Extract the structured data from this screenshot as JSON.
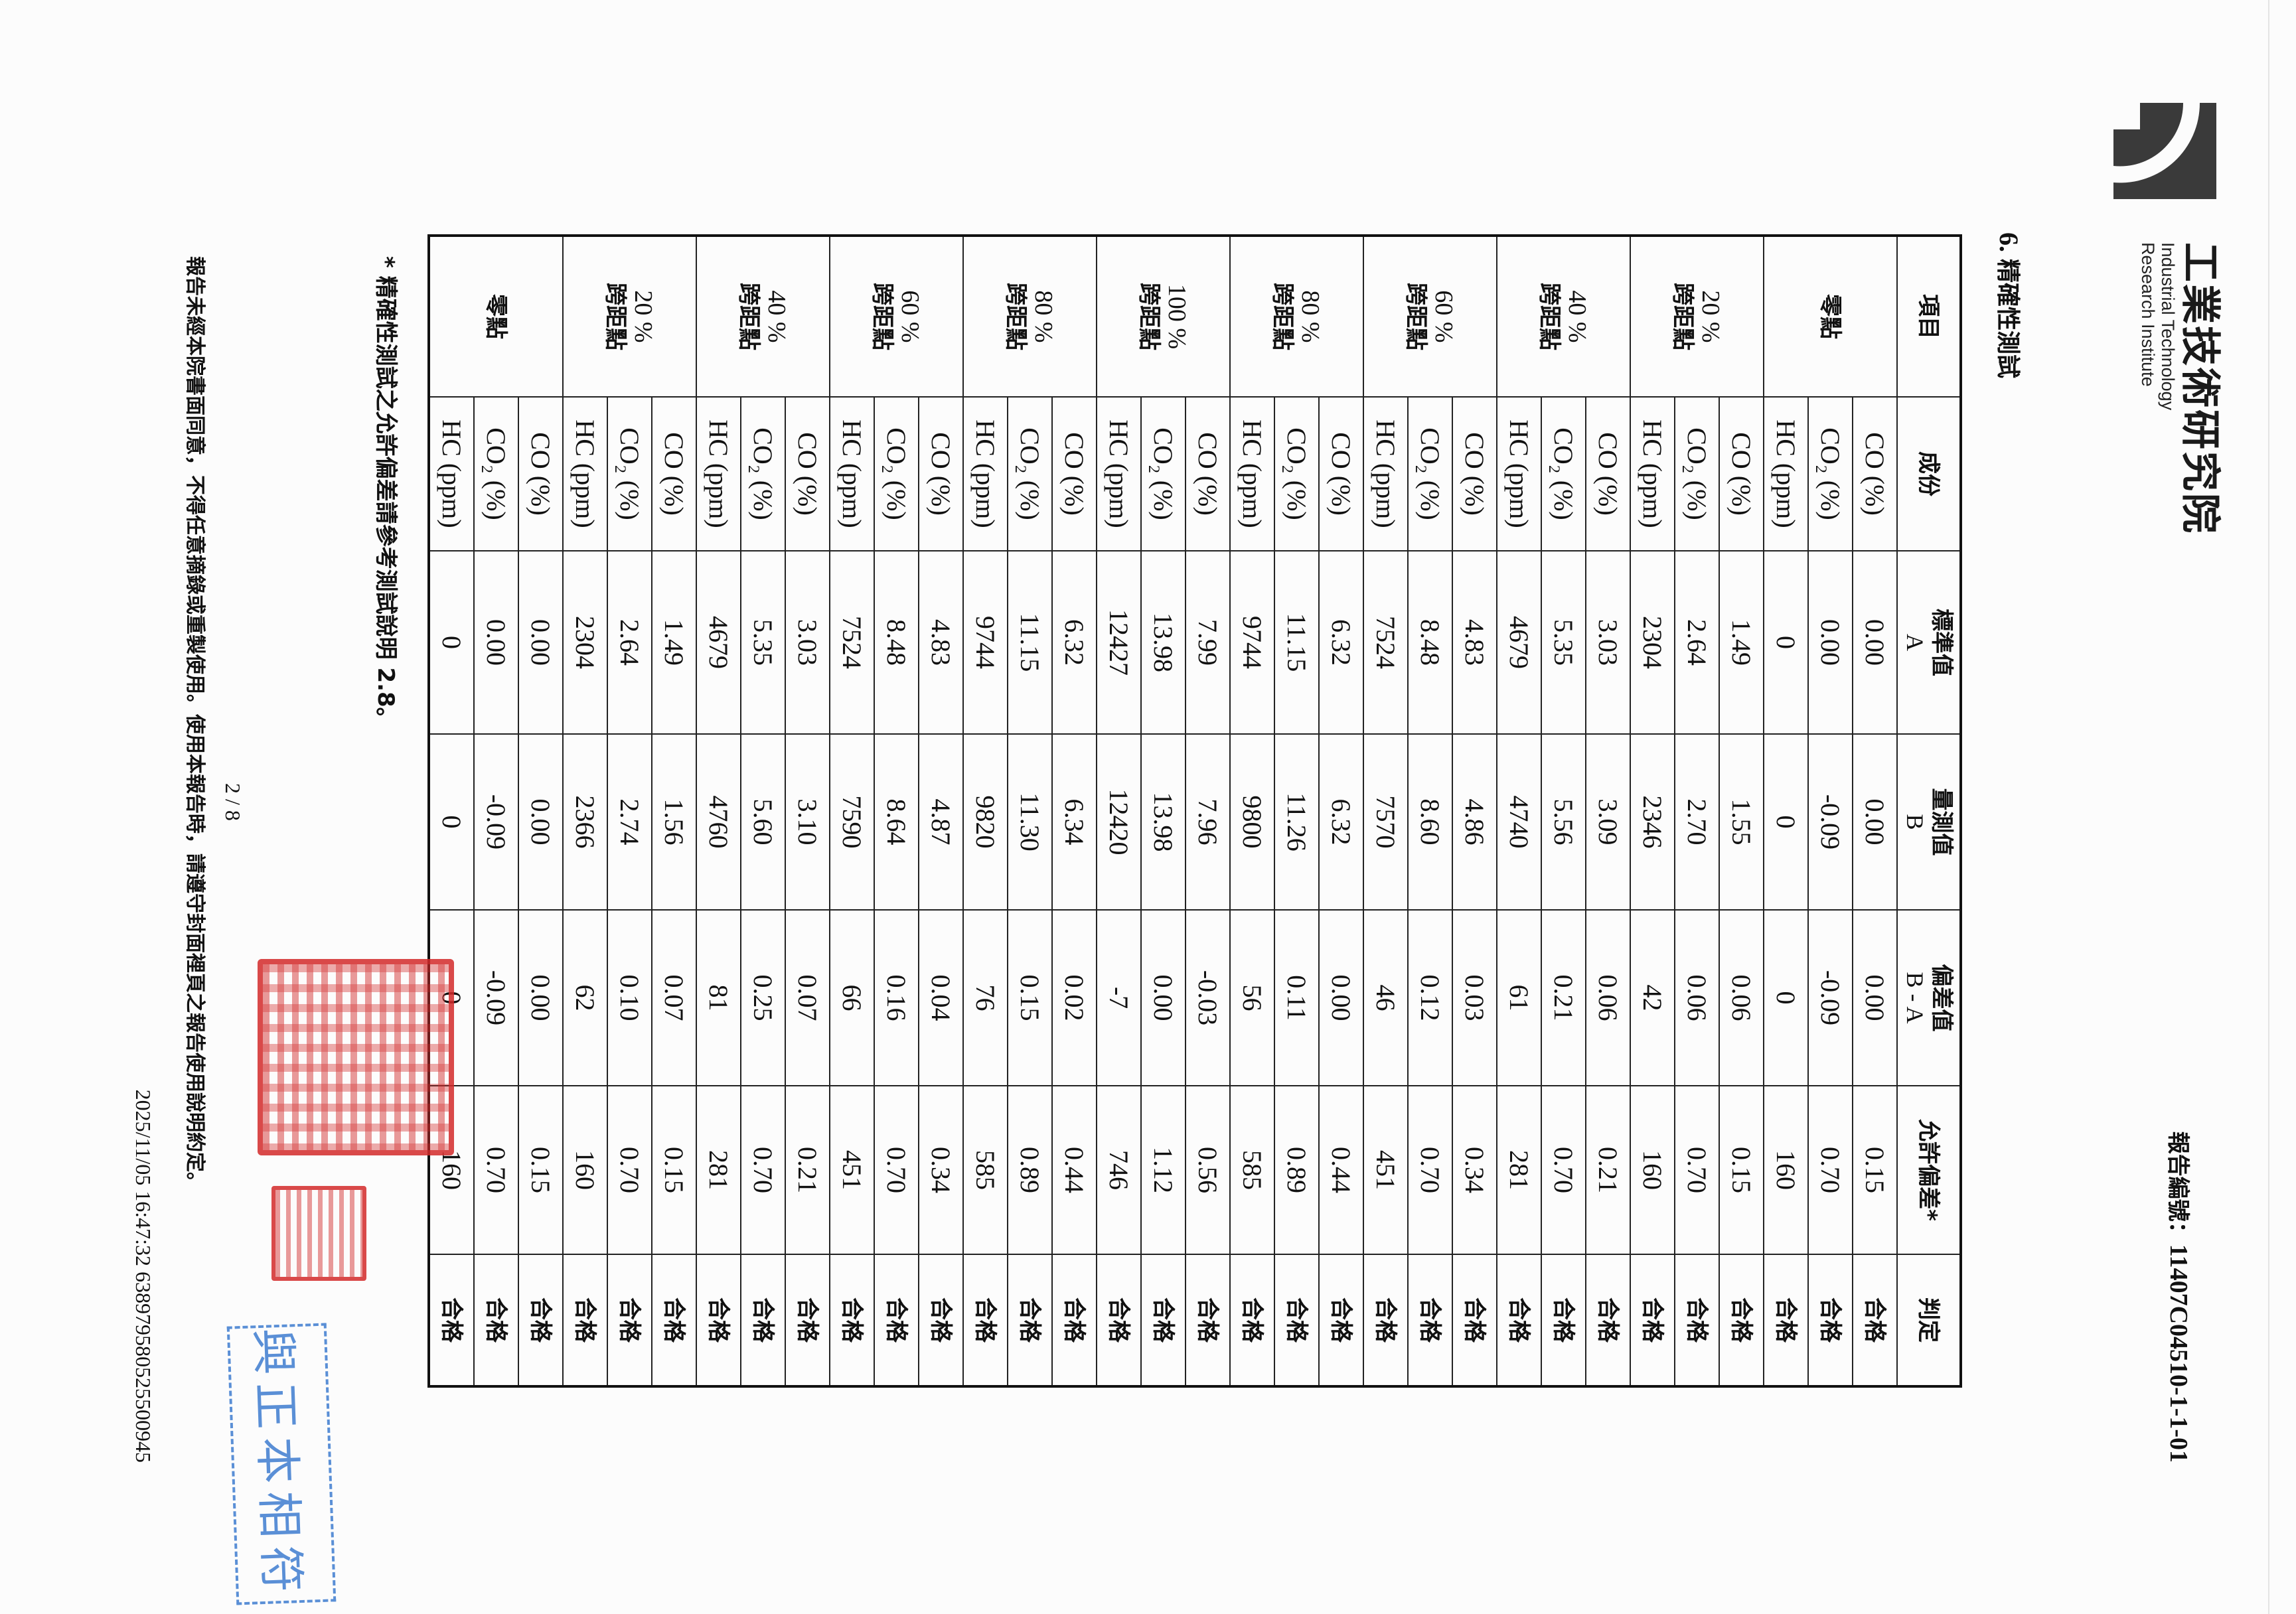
{
  "header": {
    "org_name_zh": "工業技術研究院",
    "org_name_en_line1": "Industrial Technology",
    "org_name_en_line2": "Research Institute",
    "report_number_label": "報告編號：",
    "report_number": "11407C04510-1-1-01"
  },
  "section": {
    "number": "6.",
    "title": "精確性測試"
  },
  "table": {
    "headers": [
      "項目",
      "成份",
      "標準值\nA",
      "量測值\nB",
      "偏差值\nB - A",
      "允許偏差*",
      "判定"
    ],
    "groups": [
      {
        "pct": "",
        "label": "零點",
        "rows": [
          {
            "component": "CO (%)",
            "a": "0.00",
            "b": "0.00",
            "dev": "0.00",
            "allow": "0.15",
            "verdict": "合格"
          },
          {
            "component": "CO₂ (%)",
            "a": "0.00",
            "b": "-0.09",
            "dev": "-0.09",
            "allow": "0.70",
            "verdict": "合格"
          },
          {
            "component": "HC (ppm)",
            "a": "0",
            "b": "0",
            "dev": "0",
            "allow": "160",
            "verdict": "合格"
          }
        ]
      },
      {
        "pct": "20 %",
        "label": "跨距點",
        "rows": [
          {
            "component": "CO (%)",
            "a": "1.49",
            "b": "1.55",
            "dev": "0.06",
            "allow": "0.15",
            "verdict": "合格"
          },
          {
            "component": "CO₂ (%)",
            "a": "2.64",
            "b": "2.70",
            "dev": "0.06",
            "allow": "0.70",
            "verdict": "合格"
          },
          {
            "component": "HC (ppm)",
            "a": "2304",
            "b": "2346",
            "dev": "42",
            "allow": "160",
            "verdict": "合格"
          }
        ]
      },
      {
        "pct": "40 %",
        "label": "跨距點",
        "rows": [
          {
            "component": "CO (%)",
            "a": "3.03",
            "b": "3.09",
            "dev": "0.06",
            "allow": "0.21",
            "verdict": "合格"
          },
          {
            "component": "CO₂ (%)",
            "a": "5.35",
            "b": "5.56",
            "dev": "0.21",
            "allow": "0.70",
            "verdict": "合格"
          },
          {
            "component": "HC (ppm)",
            "a": "4679",
            "b": "4740",
            "dev": "61",
            "allow": "281",
            "verdict": "合格"
          }
        ]
      },
      {
        "pct": "60 %",
        "label": "跨距點",
        "rows": [
          {
            "component": "CO (%)",
            "a": "4.83",
            "b": "4.86",
            "dev": "0.03",
            "allow": "0.34",
            "verdict": "合格"
          },
          {
            "component": "CO₂ (%)",
            "a": "8.48",
            "b": "8.60",
            "dev": "0.12",
            "allow": "0.70",
            "verdict": "合格"
          },
          {
            "component": "HC (ppm)",
            "a": "7524",
            "b": "7570",
            "dev": "46",
            "allow": "451",
            "verdict": "合格"
          }
        ]
      },
      {
        "pct": "80 %",
        "label": "跨距點",
        "rows": [
          {
            "component": "CO (%)",
            "a": "6.32",
            "b": "6.32",
            "dev": "0.00",
            "allow": "0.44",
            "verdict": "合格"
          },
          {
            "component": "CO₂ (%)",
            "a": "11.15",
            "b": "11.26",
            "dev": "0.11",
            "allow": "0.89",
            "verdict": "合格"
          },
          {
            "component": "HC (ppm)",
            "a": "9744",
            "b": "9800",
            "dev": "56",
            "allow": "585",
            "verdict": "合格"
          }
        ]
      },
      {
        "pct": "100 %",
        "label": "跨距點",
        "rows": [
          {
            "component": "CO (%)",
            "a": "7.99",
            "b": "7.96",
            "dev": "-0.03",
            "allow": "0.56",
            "verdict": "合格"
          },
          {
            "component": "CO₂ (%)",
            "a": "13.98",
            "b": "13.98",
            "dev": "0.00",
            "allow": "1.12",
            "verdict": "合格"
          },
          {
            "component": "HC (ppm)",
            "a": "12427",
            "b": "12420",
            "dev": "-7",
            "allow": "746",
            "verdict": "合格"
          }
        ]
      },
      {
        "pct": "80 %",
        "label": "跨距點",
        "rows": [
          {
            "component": "CO (%)",
            "a": "6.32",
            "b": "6.34",
            "dev": "0.02",
            "allow": "0.44",
            "verdict": "合格"
          },
          {
            "component": "CO₂ (%)",
            "a": "11.15",
            "b": "11.30",
            "dev": "0.15",
            "allow": "0.89",
            "verdict": "合格"
          },
          {
            "component": "HC (ppm)",
            "a": "9744",
            "b": "9820",
            "dev": "76",
            "allow": "585",
            "verdict": "合格"
          }
        ]
      },
      {
        "pct": "60 %",
        "label": "跨距點",
        "rows": [
          {
            "component": "CO (%)",
            "a": "4.83",
            "b": "4.87",
            "dev": "0.04",
            "allow": "0.34",
            "verdict": "合格"
          },
          {
            "component": "CO₂ (%)",
            "a": "8.48",
            "b": "8.64",
            "dev": "0.16",
            "allow": "0.70",
            "verdict": "合格"
          },
          {
            "component": "HC (ppm)",
            "a": "7524",
            "b": "7590",
            "dev": "66",
            "allow": "451",
            "verdict": "合格"
          }
        ]
      },
      {
        "pct": "40 %",
        "label": "跨距點",
        "rows": [
          {
            "component": "CO (%)",
            "a": "3.03",
            "b": "3.10",
            "dev": "0.07",
            "allow": "0.21",
            "verdict": "合格"
          },
          {
            "component": "CO₂ (%)",
            "a": "5.35",
            "b": "5.60",
            "dev": "0.25",
            "allow": "0.70",
            "verdict": "合格"
          },
          {
            "component": "HC (ppm)",
            "a": "4679",
            "b": "4760",
            "dev": "81",
            "allow": "281",
            "verdict": "合格"
          }
        ]
      },
      {
        "pct": "20 %",
        "label": "跨距點",
        "rows": [
          {
            "component": "CO (%)",
            "a": "1.49",
            "b": "1.56",
            "dev": "0.07",
            "allow": "0.15",
            "verdict": "合格"
          },
          {
            "component": "CO₂ (%)",
            "a": "2.64",
            "b": "2.74",
            "dev": "0.10",
            "allow": "0.70",
            "verdict": "合格"
          },
          {
            "component": "HC (ppm)",
            "a": "2304",
            "b": "2366",
            "dev": "62",
            "allow": "160",
            "verdict": "合格"
          }
        ]
      },
      {
        "pct": "",
        "label": "零點",
        "rows": [
          {
            "component": "CO (%)",
            "a": "0.00",
            "b": "0.00",
            "dev": "0.00",
            "allow": "0.15",
            "verdict": "合格"
          },
          {
            "component": "CO₂ (%)",
            "a": "0.00",
            "b": "-0.09",
            "dev": "-0.09",
            "allow": "0.70",
            "verdict": "合格"
          },
          {
            "component": "HC (ppm)",
            "a": "0",
            "b": "0",
            "dev": "0",
            "allow": "160",
            "verdict": "合格"
          }
        ]
      }
    ]
  },
  "footnote": "* 精確性測試之允許偏差請參考測試說明 2.8。",
  "footer": {
    "page_number": "2 / 8",
    "disclaimer": "報告未經本院書面同意，不得任意摘錄或重製使用。使用本報告時，請遵守封面裡頁之報告使用說明約定。",
    "timestamp": "2025/11/05 16:47:32 638979580525500945"
  },
  "stamps": {
    "copy_stamp": "與正本相符",
    "seal_color": "#d42a2a",
    "copy_stamp_color": "#5a8fd6"
  }
}
